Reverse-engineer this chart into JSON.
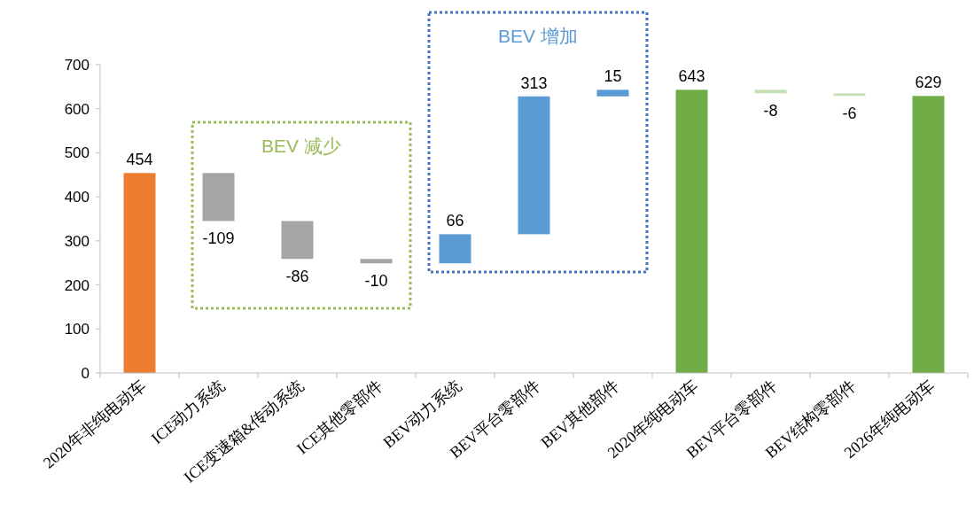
{
  "chart_data": {
    "type": "bar",
    "categories": [
      "2020年非纯电动车",
      "ICE动力系统",
      "ICE变速箱&传动系统",
      "ICE其他零部件",
      "BEV动力系统",
      "BEV平台零部件",
      "BEV其他部件",
      "2020年纯电动车",
      "BEV平台零部件",
      "BEV结构零部件",
      "2026年纯电动车"
    ],
    "values": [
      454,
      -109,
      -86,
      -10,
      66,
      313,
      15,
      643,
      -8,
      -6,
      629
    ],
    "base": [
      0,
      454,
      345,
      259,
      249,
      315,
      628,
      0,
      643,
      635,
      0
    ],
    "colors": [
      "#ed7d31",
      "#a5a5a5",
      "#a5a5a5",
      "#a5a5a5",
      "#5b9bd5",
      "#5b9bd5",
      "#5b9bd5",
      "#70ad47",
      "#c5e0b4",
      "#c5e0b4",
      "#70ad47"
    ],
    "data_labels": true,
    "ylim": [
      0,
      700
    ],
    "yticks": [
      0,
      100,
      200,
      300,
      400,
      500,
      600,
      700
    ],
    "annotations": [
      "BEV 减少",
      "BEV 增加"
    ],
    "grid": false
  }
}
